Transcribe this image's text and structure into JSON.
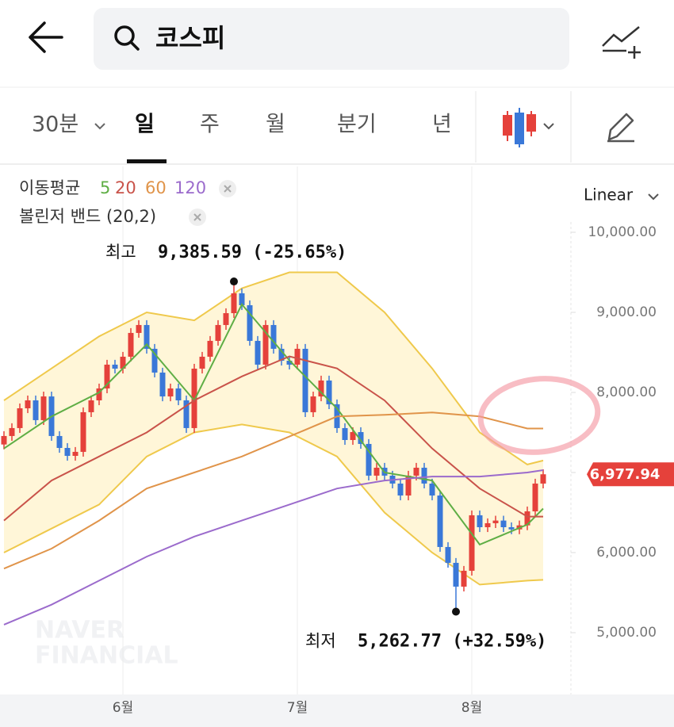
{
  "header": {
    "search": "코스피"
  },
  "tabs": [
    "30분",
    "일",
    "주",
    "월",
    "분기",
    "년"
  ],
  "active_tab": 1,
  "chart_data": {
    "type": "candlestick",
    "legend": {
      "ma_label": "이동평균",
      "bb_label": "볼린저 밴드 (20,2)"
    },
    "scale_label": "Linear",
    "watermark": [
      "NAVER",
      "FINANCIAL"
    ],
    "up_color": "#e5413b",
    "down_color": "#3a78d8",
    "ylim": [
      4238,
      10772
    ],
    "yticks": [
      {
        "value": 10000,
        "label": "10,000.00"
      },
      {
        "value": 9000,
        "label": "9,000.00"
      },
      {
        "value": 8000,
        "label": "8,000.00"
      },
      {
        "value": 7000,
        "label": "7,000.00"
      },
      {
        "value": 6000,
        "label": "6,000.00"
      },
      {
        "value": 5000,
        "label": "5,000.00"
      }
    ],
    "xticks": [
      {
        "value": 15,
        "label": "6월"
      },
      {
        "value": 37,
        "label": "7월"
      },
      {
        "value": 59,
        "label": "8월"
      }
    ],
    "last_value_label": "6,977.94",
    "candles": [
      [
        7350,
        7516,
        7290,
        7456
      ],
      [
        7456,
        7615,
        7396,
        7555
      ],
      [
        7555,
        7862,
        7495,
        7802
      ],
      [
        7802,
        7961,
        7742,
        7901
      ],
      [
        7901,
        7961,
        7594,
        7654
      ],
      [
        7654,
        8010,
        7594,
        7950
      ],
      [
        7950,
        8010,
        7396,
        7456
      ],
      [
        7456,
        7516,
        7247,
        7307
      ],
      [
        7307,
        7367,
        7148,
        7208
      ],
      [
        7208,
        7318,
        7148,
        7258
      ],
      [
        7258,
        7813,
        7198,
        7753
      ],
      [
        7753,
        7961,
        7693,
        7901
      ],
      [
        7901,
        8110,
        7841,
        8050
      ],
      [
        8050,
        8407,
        7990,
        8347
      ],
      [
        8347,
        8407,
        8237,
        8297
      ],
      [
        8297,
        8506,
        8237,
        8446
      ],
      [
        8446,
        8803,
        8386,
        8743
      ],
      [
        8743,
        8902,
        8683,
        8842
      ],
      [
        8842,
        8902,
        8485,
        8545
      ],
      [
        8545,
        8605,
        8188,
        8248
      ],
      [
        8248,
        8308,
        7890,
        7950
      ],
      [
        7950,
        8110,
        7890,
        8050
      ],
      [
        8050,
        8110,
        7841,
        7901
      ],
      [
        7901,
        7961,
        7495,
        7555
      ],
      [
        7555,
        8357,
        7495,
        8297
      ],
      [
        8297,
        8506,
        8237,
        8446
      ],
      [
        8446,
        8704,
        8386,
        8644
      ],
      [
        8644,
        8902,
        8584,
        8842
      ],
      [
        8842,
        9050,
        8782,
        8990
      ],
      [
        8990,
        9385.59,
        8930,
        9238
      ],
      [
        9238,
        9298,
        9029,
        9089
      ],
      [
        9089,
        9149,
        8584,
        8644
      ],
      [
        8644,
        8704,
        8287,
        8347
      ],
      [
        8347,
        8902,
        8287,
        8842
      ],
      [
        8842,
        8902,
        8485,
        8545
      ],
      [
        8545,
        8605,
        8336,
        8396
      ],
      [
        8396,
        8456,
        8287,
        8347
      ],
      [
        8347,
        8605,
        8287,
        8545
      ],
      [
        8545,
        8605,
        7693,
        7753
      ],
      [
        7753,
        8010,
        7693,
        7950
      ],
      [
        7950,
        8209,
        7890,
        8149
      ],
      [
        8149,
        8209,
        7792,
        7852
      ],
      [
        7852,
        7912,
        7495,
        7555
      ],
      [
        7555,
        7615,
        7346,
        7406
      ],
      [
        7406,
        7565,
        7346,
        7505
      ],
      [
        7505,
        7565,
        7297,
        7357
      ],
      [
        7357,
        7417,
        6901,
        6961
      ],
      [
        6961,
        7120,
        6901,
        7060
      ],
      [
        7060,
        7120,
        6901,
        6961
      ],
      [
        6961,
        7021,
        6802,
        6862
      ],
      [
        6862,
        6922,
        6653,
        6713
      ],
      [
        6713,
        7021,
        6653,
        6961
      ],
      [
        6961,
        7120,
        6901,
        7060
      ],
      [
        7060,
        7120,
        6802,
        6862
      ],
      [
        6862,
        6922,
        6653,
        6713
      ],
      [
        6713,
        6773,
        6010,
        6070
      ],
      [
        6070,
        6130,
        5812,
        5872
      ],
      [
        5872,
        5932,
        5262.77,
        5575
      ],
      [
        5575,
        5833,
        5515,
        5773
      ],
      [
        5773,
        6526,
        5713,
        6466
      ],
      [
        6466,
        6526,
        6257,
        6317
      ],
      [
        6317,
        6427,
        6257,
        6367
      ],
      [
        6367,
        6460,
        6307,
        6400
      ],
      [
        6400,
        6460,
        6257,
        6317
      ],
      [
        6317,
        6377,
        6230,
        6290
      ],
      [
        6290,
        6400,
        6230,
        6340
      ],
      [
        6340,
        6575,
        6280,
        6515
      ],
      [
        6515,
        6922,
        6455,
        6862
      ],
      [
        6862,
        7040,
        6802,
        6977.94
      ]
    ],
    "series": [
      {
        "name": "5",
        "color": "#5fae45",
        "x": [
          0,
          6,
          12,
          18,
          24,
          30,
          36,
          42,
          48,
          54,
          60,
          66,
          68
        ],
        "values": [
          7300,
          7700,
          8000,
          8600,
          7900,
          9100,
          8400,
          7800,
          7000,
          6900,
          6100,
          6350,
          6550
        ]
      },
      {
        "name": "20",
        "color": "#c9534a",
        "x": [
          0,
          6,
          12,
          18,
          24,
          30,
          36,
          42,
          48,
          54,
          60,
          66,
          68
        ],
        "values": [
          6400,
          6900,
          7200,
          7500,
          7900,
          8200,
          8450,
          8300,
          7900,
          7300,
          6800,
          6450,
          6450
        ]
      },
      {
        "name": "60",
        "color": "#e0944a",
        "x": [
          0,
          6,
          12,
          18,
          24,
          30,
          36,
          42,
          48,
          54,
          60,
          66,
          68
        ],
        "values": [
          5800,
          6050,
          6400,
          6800,
          7000,
          7200,
          7450,
          7700,
          7720,
          7750,
          7700,
          7550,
          7550
        ]
      },
      {
        "name": "120",
        "color": "#9b6bcc",
        "x": [
          0,
          6,
          12,
          18,
          24,
          30,
          36,
          42,
          48,
          54,
          60,
          66,
          68
        ],
        "values": [
          5100,
          5350,
          5650,
          5950,
          6200,
          6400,
          6600,
          6800,
          6900,
          6950,
          6950,
          7000,
          7030
        ]
      }
    ],
    "bollinger": {
      "color": "#efc94c",
      "fill": "#fff6d8",
      "x": [
        0,
        6,
        12,
        18,
        24,
        30,
        36,
        42,
        48,
        54,
        60,
        66,
        68
      ],
      "upper": [
        7900,
        8300,
        8700,
        9000,
        8900,
        9300,
        9500,
        9500,
        9000,
        8300,
        7500,
        7100,
        7150
      ],
      "lower": [
        6000,
        6300,
        6600,
        7200,
        7500,
        7600,
        7500,
        7200,
        6500,
        6000,
        5600,
        5650,
        5660
      ]
    },
    "annotations": [
      {
        "label": "최고",
        "text": "9,385.59 (-25.65%)",
        "x": 29,
        "y": 9385.59,
        "side": "above"
      },
      {
        "label": "최저",
        "text": "5,262.77 (+32.59%)",
        "x": 57,
        "y": 5262.77,
        "side": "below"
      }
    ]
  }
}
